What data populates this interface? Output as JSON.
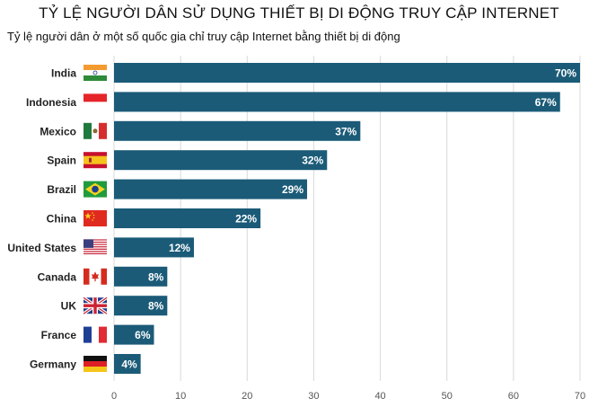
{
  "chart_data": {
    "type": "bar",
    "orientation": "horizontal",
    "title": "TỶ LỆ NGƯỜI DÂN SỬ DỤNG THIẾT BỊ DI ĐỘNG TRUY CẬP INTERNET",
    "subtitle": "Tỷ lệ người dân ở một số quốc gia chỉ truy cập Internet bằng thiết bị di động",
    "categories": [
      "India",
      "Indonesia",
      "Mexico",
      "Spain",
      "Brazil",
      "China",
      "United States",
      "Canada",
      "UK",
      "France",
      "Germany"
    ],
    "values": [
      70,
      67,
      37,
      32,
      29,
      22,
      12,
      8,
      8,
      6,
      4
    ],
    "data_labels": [
      "70%",
      "67%",
      "37%",
      "32%",
      "29%",
      "22%",
      "12%",
      "8%",
      "8%",
      "6%",
      "4%"
    ],
    "flags": [
      "india-flag-icon",
      "indonesia-flag-icon",
      "mexico-flag-icon",
      "spain-flag-icon",
      "brazil-flag-icon",
      "china-flag-icon",
      "united-states-flag-icon",
      "canada-flag-icon",
      "uk-flag-icon",
      "france-flag-icon",
      "germany-flag-icon"
    ],
    "xlim": [
      0,
      70
    ],
    "xticks": [
      0,
      10,
      20,
      30,
      40,
      50,
      60,
      70
    ],
    "grid": true,
    "bar_color": "#1b5b78",
    "grid_color": "#d9d9d9",
    "label_color": "#ffffff"
  }
}
